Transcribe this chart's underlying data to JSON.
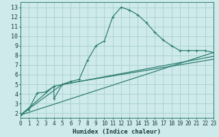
{
  "xlabel": "Humidex (Indice chaleur)",
  "xlim": [
    0,
    23
  ],
  "ylim": [
    1.5,
    13.5
  ],
  "xticks": [
    0,
    1,
    2,
    3,
    4,
    5,
    6,
    7,
    8,
    9,
    10,
    11,
    12,
    13,
    14,
    15,
    16,
    17,
    18,
    19,
    20,
    21,
    22,
    23
  ],
  "yticks": [
    2,
    3,
    4,
    5,
    6,
    7,
    8,
    9,
    10,
    11,
    12,
    13
  ],
  "bg_color": "#ceeaea",
  "line_color": "#2e7d72",
  "grid_color": "#aacfcf",
  "line1_x": [
    0,
    1,
    2,
    3,
    4,
    4,
    5,
    6,
    7,
    8,
    9,
    10,
    11,
    12,
    13,
    14,
    15,
    16,
    17,
    18,
    19,
    20,
    21,
    22,
    23
  ],
  "line1_y": [
    1.8,
    2.4,
    4.1,
    4.2,
    4.8,
    3.5,
    5.0,
    5.3,
    5.5,
    7.5,
    9.0,
    9.5,
    12.0,
    13.0,
    12.7,
    12.2,
    11.4,
    10.4,
    9.6,
    9.0,
    8.5,
    8.5,
    8.5,
    8.5,
    8.3
  ],
  "line2_x": [
    0,
    23
  ],
  "line2_y": [
    1.8,
    8.3
  ],
  "line3_x": [
    0,
    4,
    23
  ],
  "line3_y": [
    1.8,
    4.8,
    7.9
  ],
  "line4_x": [
    0,
    5,
    23
  ],
  "line4_y": [
    1.8,
    5.0,
    7.6
  ],
  "xlabel_fontsize": 6.5,
  "tick_fontsize": 5.5,
  "marker_size": 2.0,
  "linewidth": 0.9
}
